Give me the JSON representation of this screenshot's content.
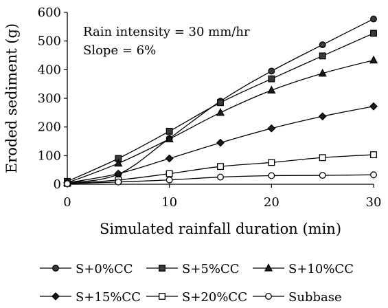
{
  "chart_data": {
    "type": "line",
    "xlabel": "Simulated rainfall duration (min)",
    "ylabel": "Eroded sediment (g)",
    "xlim": [
      0,
      30
    ],
    "ylim": [
      0,
      600
    ],
    "xticks": [
      0,
      10,
      20,
      30
    ],
    "yticks": [
      0,
      100,
      200,
      300,
      400,
      500,
      600
    ],
    "grid": false,
    "legend_position": "bottom",
    "annotations": [
      "Rain intensity = 30 mm/hr",
      "Slope = 6%"
    ],
    "series": [
      {
        "name": "S+0%CC",
        "marker": "circle-filled",
        "x": [
          0,
          5,
          10,
          15,
          20,
          25,
          30
        ],
        "y": [
          5,
          35,
          160,
          290,
          395,
          487,
          577
        ]
      },
      {
        "name": "S+5%CC",
        "marker": "square-filled",
        "x": [
          0,
          5,
          10,
          15,
          20,
          25,
          30
        ],
        "y": [
          10,
          90,
          185,
          285,
          368,
          448,
          527
        ]
      },
      {
        "name": "S+10%CC",
        "marker": "triangle-filled",
        "x": [
          0,
          5,
          10,
          15,
          20,
          25,
          30
        ],
        "y": [
          5,
          73,
          158,
          250,
          328,
          387,
          433
        ]
      },
      {
        "name": "S+15%CC",
        "marker": "diamond-filled",
        "x": [
          0,
          5,
          10,
          15,
          20,
          25,
          30
        ],
        "y": [
          5,
          37,
          90,
          145,
          195,
          237,
          272
        ]
      },
      {
        "name": "S+20%CC",
        "marker": "square-open",
        "x": [
          0,
          5,
          10,
          15,
          20,
          25,
          30
        ],
        "y": [
          3,
          15,
          37,
          62,
          76,
          93,
          103
        ]
      },
      {
        "name": "Subbase",
        "marker": "circle-open",
        "x": [
          0,
          5,
          10,
          15,
          20,
          25,
          30
        ],
        "y": [
          2,
          8,
          15,
          25,
          30,
          31,
          33
        ]
      }
    ]
  }
}
